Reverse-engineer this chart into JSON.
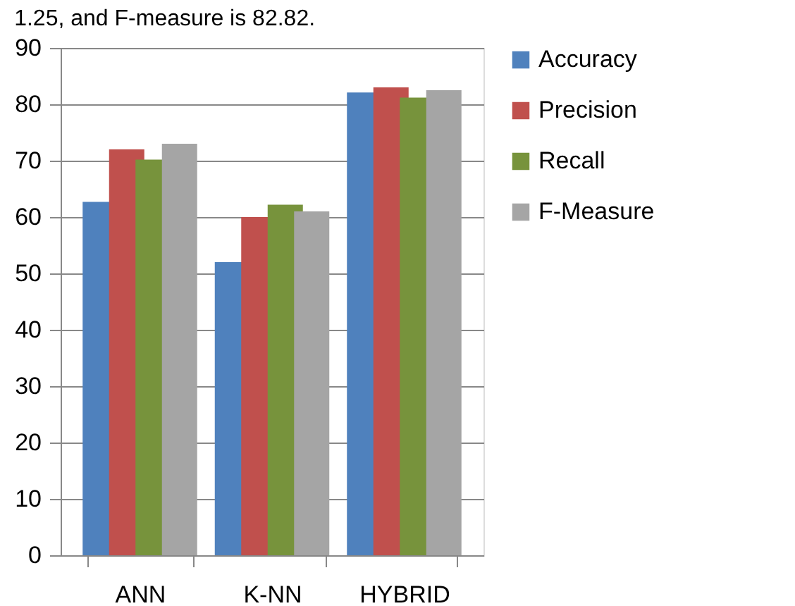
{
  "chart_data": {
    "type": "bar",
    "annotations": [
      "1.25, and F-measure is 82.82."
    ],
    "categories": [
      "ANN",
      "K-NN",
      "HYBRID"
    ],
    "series": [
      {
        "name": "Accuracy",
        "color": "#4f81bd",
        "values": [
          62.7,
          52,
          82.1
        ]
      },
      {
        "name": "Precision",
        "color": "#c0504d",
        "values": [
          72,
          60,
          83
        ]
      },
      {
        "name": "Recall",
        "color": "#77933c",
        "values": [
          70.2,
          62.2,
          81.2
        ]
      },
      {
        "name": "F-Measure",
        "color": "#a5a5a5",
        "values": [
          73,
          61,
          82.5
        ]
      }
    ],
    "ylim": [
      0,
      90
    ],
    "yticks": [
      0,
      10,
      20,
      30,
      40,
      50,
      60,
      70,
      80,
      90
    ],
    "grid": "y",
    "legend": "right"
  }
}
